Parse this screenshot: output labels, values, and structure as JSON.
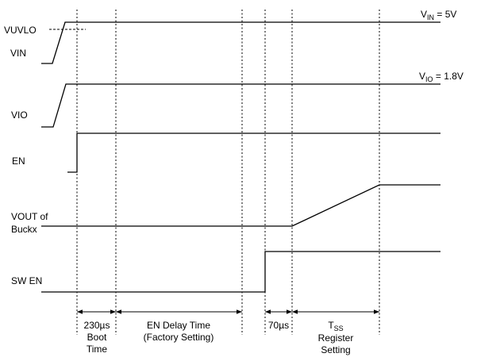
{
  "signals": {
    "vuvlo": "VUVLO",
    "vin": "VIN",
    "vio": "VIO",
    "en": "EN",
    "vout_line1": "VOUT of",
    "vout_line2": "Buckx",
    "swen": "SW EN"
  },
  "levels": {
    "vin": {
      "base": "V",
      "sub": "IN",
      "rest": " = 5V"
    },
    "vio": {
      "base": "V",
      "sub": "IO",
      "rest": " = 1.8V"
    }
  },
  "intervals": {
    "boot": [
      "230µs",
      "Boot",
      "Time"
    ],
    "delay": [
      "EN Delay Time",
      "(Factory Setting)"
    ],
    "t70": [
      "70µs"
    ],
    "tss": {
      "base": "T",
      "sub": "SS",
      "lines": [
        "Register",
        "Setting"
      ]
    }
  }
}
